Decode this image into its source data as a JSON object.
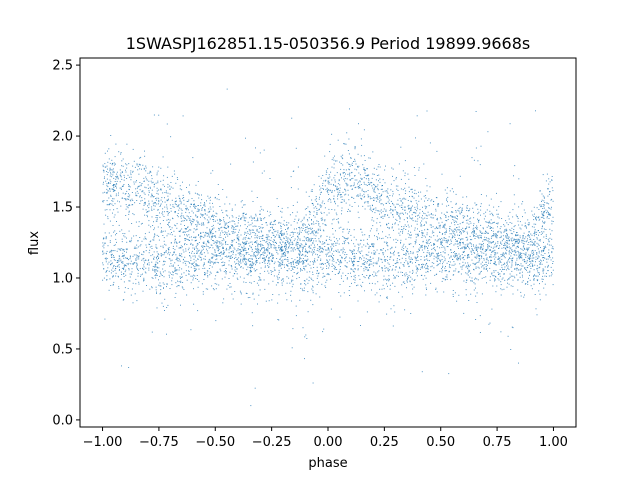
{
  "chart_data": {
    "type": "scatter",
    "title": "1SWASPJ162851.15-050356.9 Period 19899.9668s",
    "xlabel": "phase",
    "ylabel": "flux",
    "xlim": [
      -1.1,
      1.1
    ],
    "ylim": [
      -0.05,
      2.55
    ],
    "xticks": [
      -1.0,
      -0.75,
      -0.5,
      -0.25,
      0.0,
      0.25,
      0.5,
      0.75,
      1.0
    ],
    "xtick_labels": [
      "−1.00",
      "−0.75",
      "−0.50",
      "−0.25",
      "0.00",
      "0.25",
      "0.50",
      "0.75",
      "1.00"
    ],
    "yticks": [
      0.0,
      0.5,
      1.0,
      1.5,
      2.0,
      2.5
    ],
    "ytick_labels": [
      "0.0",
      "0.5",
      "1.0",
      "1.5",
      "2.0",
      "2.5"
    ],
    "grid": false,
    "marker_color": "#1f77b4",
    "series": [
      {
        "description": "dense phase-folded light curve, ~20000 points; two branches: upper hump and baseline",
        "profile": [
          {
            "phase": -1.0,
            "upper": 1.65,
            "lower": 1.15
          },
          {
            "phase": -0.9,
            "upper": 1.68,
            "lower": 1.12
          },
          {
            "phase": -0.75,
            "upper": 1.55,
            "lower": 1.12
          },
          {
            "phase": -0.5,
            "upper": 1.35,
            "lower": 1.15
          },
          {
            "phase": -0.25,
            "upper": 1.25,
            "lower": 1.15
          },
          {
            "phase": -0.1,
            "upper": 1.25,
            "lower": 1.15
          },
          {
            "phase": 0.0,
            "upper": 1.6,
            "lower": 1.15
          },
          {
            "phase": 0.1,
            "upper": 1.7,
            "lower": 1.12
          },
          {
            "phase": 0.25,
            "upper": 1.55,
            "lower": 1.12
          },
          {
            "phase": 0.5,
            "upper": 1.35,
            "lower": 1.15
          },
          {
            "phase": 0.75,
            "upper": 1.25,
            "lower": 1.15
          },
          {
            "phase": 0.9,
            "upper": 1.25,
            "lower": 1.15
          },
          {
            "phase": 1.0,
            "upper": 1.6,
            "lower": 1.15
          }
        ]
      }
    ]
  }
}
